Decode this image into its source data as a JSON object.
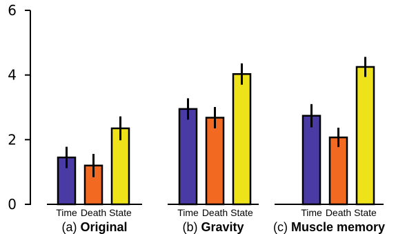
{
  "chart_data": {
    "type": "bar",
    "ylim": [
      0,
      6
    ],
    "yticks": [
      "0",
      "2",
      "4",
      "6"
    ],
    "categories": [
      "Time",
      "Death",
      "State"
    ],
    "colors": [
      "#4a3aa3",
      "#f26a22",
      "#eee31a"
    ],
    "grid": false,
    "panels": [
      {
        "prefix": "(a)",
        "name": "Original",
        "values": [
          1.45,
          1.2,
          2.35
        ],
        "errors": [
          0.33,
          0.36,
          0.37
        ]
      },
      {
        "prefix": "(b)",
        "name": "Gravity",
        "values": [
          2.95,
          2.68,
          4.03
        ],
        "errors": [
          0.33,
          0.33,
          0.33
        ]
      },
      {
        "prefix": "(c)",
        "name": "Muscle memory",
        "values": [
          2.74,
          2.07,
          4.25
        ],
        "errors": [
          0.36,
          0.3,
          0.31
        ]
      }
    ]
  }
}
